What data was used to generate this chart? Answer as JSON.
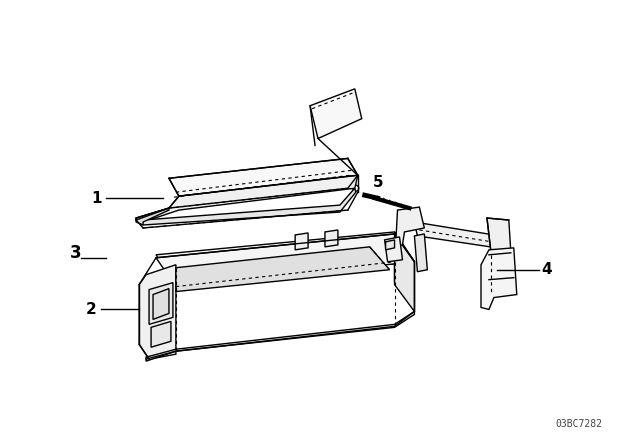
{
  "background_color": "#ffffff",
  "line_color": "#000000",
  "line_width": 1.0,
  "watermark": "03BC7282",
  "label_fontsize": 9,
  "label_bold_fontsize": 11
}
